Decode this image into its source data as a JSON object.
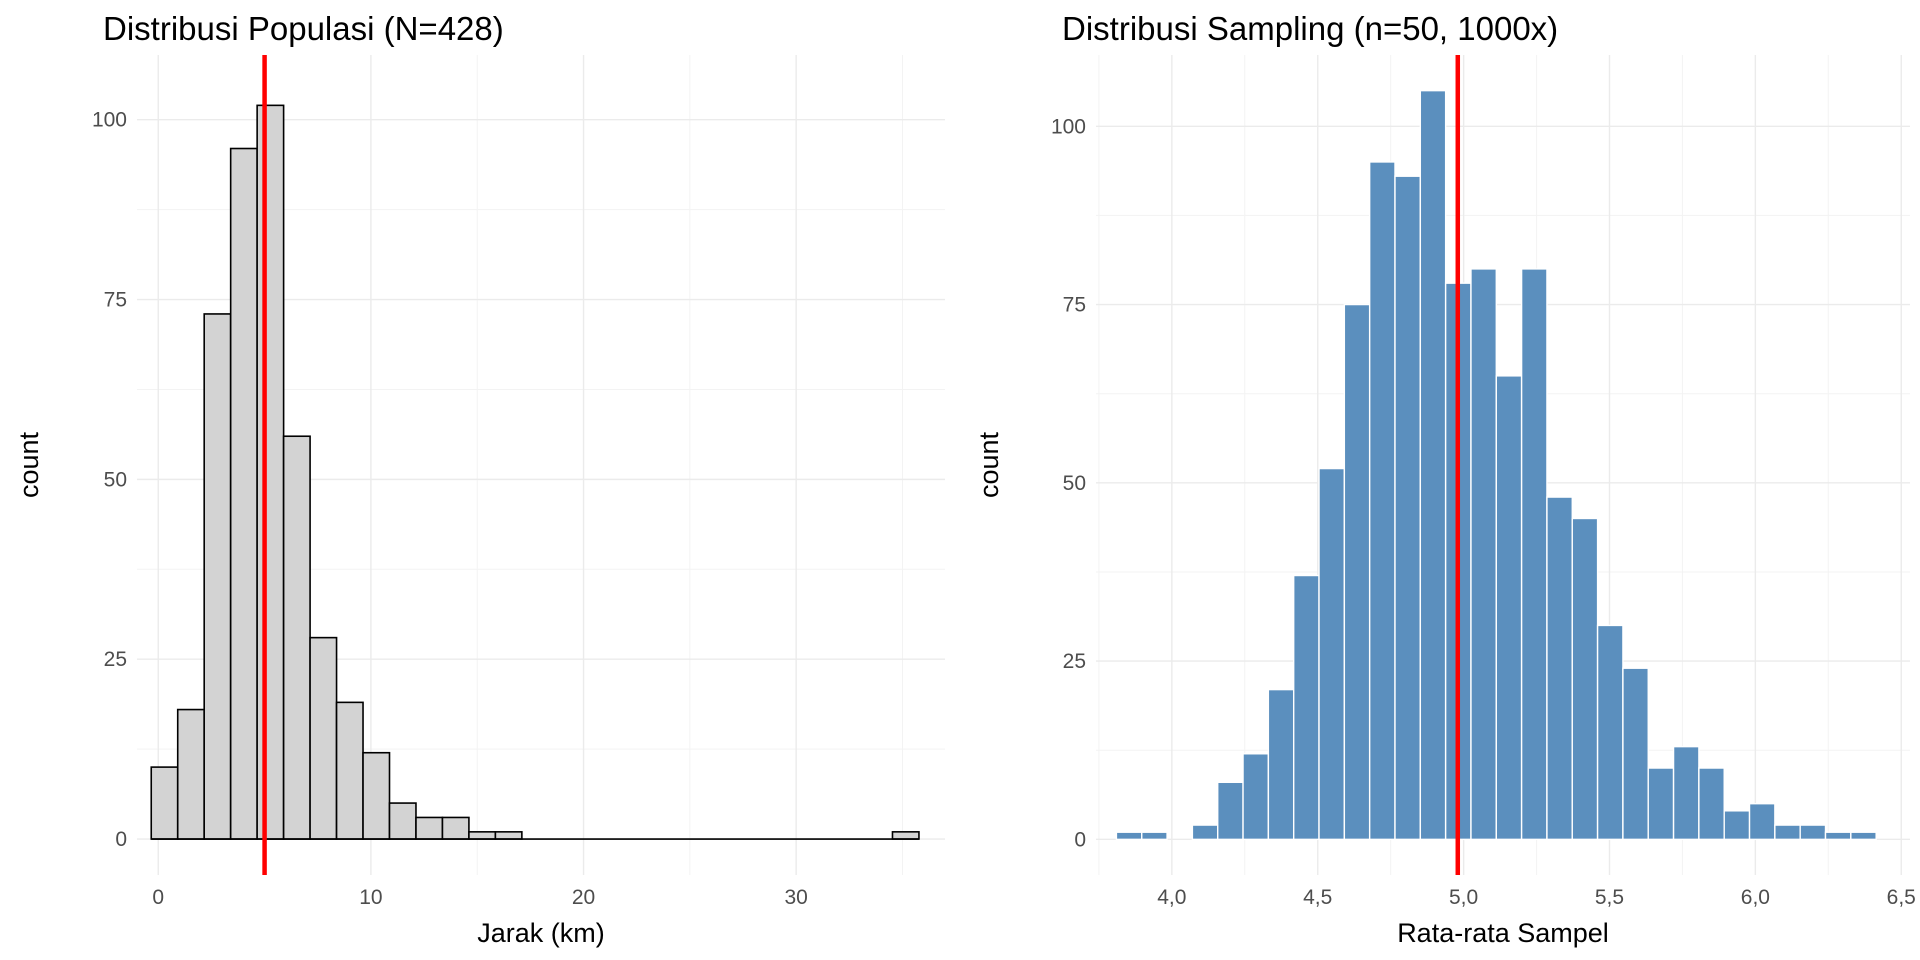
{
  "chart_data": [
    {
      "type": "bar",
      "title": "Distribusi Populasi (N=428)",
      "xlabel": "Jarak (km)",
      "ylabel": "count",
      "xlim": [
        -1.0,
        37.0
      ],
      "ylim": [
        -5,
        109
      ],
      "x_ticks": [
        0,
        10,
        20,
        30
      ],
      "x_tick_labels": [
        "0",
        "10",
        "20",
        "30"
      ],
      "y_ticks": [
        0,
        25,
        50,
        75,
        100
      ],
      "y_tick_labels": [
        "0",
        "25",
        "50",
        "75",
        "100"
      ],
      "grid": true,
      "bin_width": 1.245,
      "bin_start": -0.33,
      "values": [
        10,
        18,
        73,
        96,
        102,
        56,
        28,
        19,
        12,
        5,
        3,
        3,
        1,
        1,
        0,
        0,
        0,
        0,
        0,
        0,
        0,
        0,
        0,
        0,
        0,
        0,
        0,
        0,
        1
      ],
      "reference_line": 5.0,
      "colors": {
        "bar_fill": "#d3d3d3",
        "bar_stroke": "#000000",
        "reference_line": "#ff0000"
      }
    },
    {
      "type": "bar",
      "title": "Distribusi Sampling (n=50, 1000x)",
      "xlabel": "Rata-rata Sampel",
      "ylabel": "count",
      "xlim": [
        3.74,
        6.53
      ],
      "ylim": [
        -5,
        110
      ],
      "x_ticks": [
        4.0,
        4.5,
        5.0,
        5.5,
        6.0,
        6.5
      ],
      "x_tick_labels": [
        "4,0",
        "4,5",
        "5,0",
        "5,5",
        "6,0",
        "6,5"
      ],
      "y_ticks": [
        0,
        25,
        50,
        75,
        100
      ],
      "y_tick_labels": [
        "0",
        "25",
        "50",
        "75",
        "100"
      ],
      "grid": true,
      "bin_width": 0.0868,
      "bin_start": 3.81,
      "values": [
        1,
        1,
        0,
        2,
        8,
        12,
        21,
        37,
        52,
        75,
        95,
        93,
        105,
        78,
        80,
        65,
        80,
        48,
        45,
        30,
        24,
        10,
        13,
        10,
        4,
        5,
        2,
        2,
        1,
        1
      ],
      "reference_line": 4.98,
      "colors": {
        "bar_fill": "#5b8fbe",
        "bar_stroke": "#ffffff",
        "reference_line": "#ff0000"
      }
    }
  ]
}
